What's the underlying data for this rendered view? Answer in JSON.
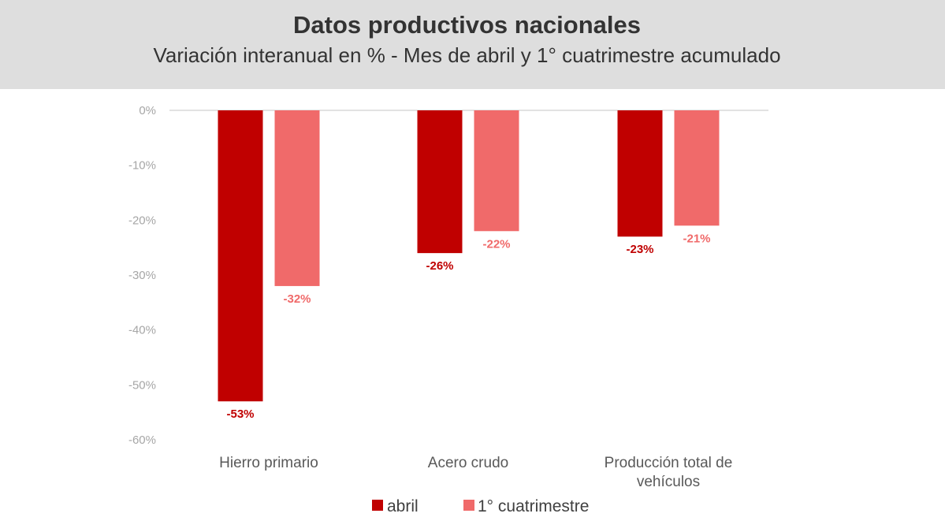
{
  "header": {
    "title": "Datos productivos nacionales",
    "subtitle": "Variación interanual en % - Mes de abril y 1° cuatrimestre acumulado"
  },
  "colors": {
    "header_bg": "#dedede",
    "abril": "#c00000",
    "cuatrimestre": "#f06a6a",
    "grid": "#d9d9d9"
  },
  "chart_data": {
    "type": "bar",
    "title": "Datos productivos nacionales",
    "subtitle": "Variación interanual en % - Mes de abril y 1° cuatrimestre acumulado",
    "categories": [
      [
        "Hierro primario"
      ],
      [
        "Acero crudo"
      ],
      [
        "Producción total de",
        "vehículos"
      ]
    ],
    "series": [
      {
        "name": "abril",
        "values": [
          -53,
          -26,
          -23
        ],
        "labels": [
          "-53%",
          "-26%",
          "-23%"
        ]
      },
      {
        "name": "1° cuatrimestre",
        "values": [
          -32,
          -22,
          -21
        ],
        "labels": [
          "-32%",
          "-22%",
          "-21%"
        ]
      }
    ],
    "yticks": [
      "0%",
      "-10%",
      "-20%",
      "-30%",
      "-40%",
      "-50%",
      "-60%"
    ],
    "ylim": [
      -60,
      0
    ],
    "xlabel": "",
    "ylabel": "",
    "legend_position": "bottom"
  }
}
